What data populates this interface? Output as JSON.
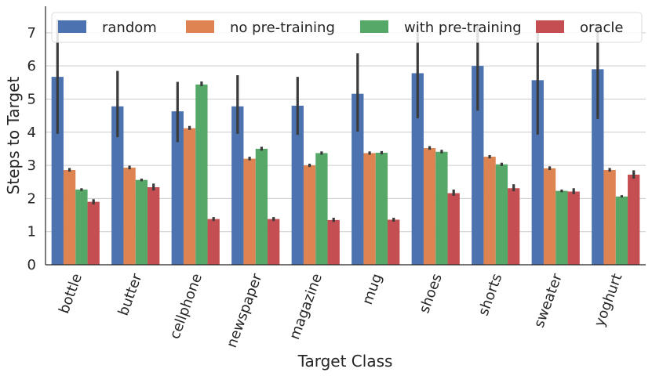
{
  "chart_data": {
    "type": "bar",
    "title": "",
    "xlabel": "Target Class",
    "ylabel": "Steps to Target",
    "ylim": [
      0,
      7.8
    ],
    "yticks": [
      0,
      1,
      2,
      3,
      4,
      5,
      6,
      7
    ],
    "grid": true,
    "legend_position": "top",
    "categories": [
      "bottle",
      "butter",
      "cellphone",
      "newspaper",
      "magazine",
      "mug",
      "shoes",
      "shorts",
      "sweater",
      "yoghurt"
    ],
    "series": [
      {
        "name": "random",
        "color": "#4c72b0",
        "values": [
          5.67,
          4.78,
          4.63,
          4.78,
          4.8,
          5.16,
          5.78,
          6.0,
          5.57,
          5.9
        ],
        "err_low": [
          3.95,
          3.85,
          3.7,
          3.95,
          3.92,
          4.02,
          4.42,
          4.65,
          3.93,
          4.4
        ],
        "err_high": [
          7.4,
          5.85,
          5.52,
          5.72,
          5.67,
          6.38,
          7.2,
          7.25,
          7.2,
          7.25
        ]
      },
      {
        "name": "no pre-training",
        "color": "#dd8452",
        "values": [
          2.86,
          2.93,
          4.12,
          3.2,
          3.0,
          3.37,
          3.52,
          3.26,
          2.91,
          2.86
        ],
        "err_low": [
          2.81,
          2.88,
          4.07,
          3.15,
          2.95,
          3.32,
          3.47,
          3.21,
          2.86,
          2.81
        ],
        "err_high": [
          2.92,
          2.99,
          4.19,
          3.26,
          3.05,
          3.42,
          3.58,
          3.31,
          2.97,
          2.92
        ]
      },
      {
        "name": "with pre-training",
        "color": "#55a868",
        "values": [
          2.27,
          2.56,
          5.44,
          3.5,
          3.37,
          3.38,
          3.41,
          3.03,
          2.23,
          2.06
        ],
        "err_low": [
          2.23,
          2.52,
          5.39,
          3.44,
          3.32,
          3.33,
          3.36,
          2.98,
          2.19,
          2.03
        ],
        "err_high": [
          2.31,
          2.6,
          5.53,
          3.56,
          3.42,
          3.43,
          3.47,
          3.08,
          2.27,
          2.1
        ]
      },
      {
        "name": "oracle",
        "color": "#c44e52",
        "values": [
          1.9,
          2.34,
          1.38,
          1.38,
          1.35,
          1.36,
          2.16,
          2.31,
          2.21,
          2.72
        ],
        "err_low": [
          1.82,
          2.24,
          1.32,
          1.32,
          1.29,
          1.3,
          2.08,
          2.22,
          2.13,
          2.6
        ],
        "err_high": [
          1.98,
          2.45,
          1.44,
          1.44,
          1.42,
          1.42,
          2.27,
          2.43,
          2.31,
          2.85
        ]
      }
    ]
  }
}
